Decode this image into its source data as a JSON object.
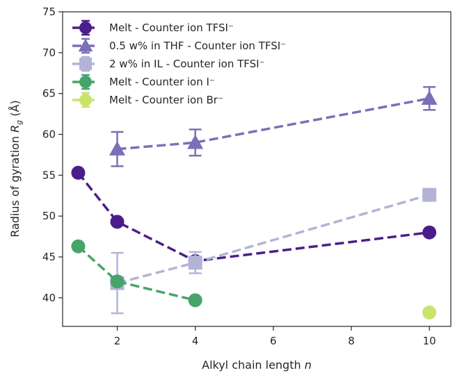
{
  "chart_data": {
    "type": "line",
    "xlabel": "Alkyl chain length n",
    "ylabel": "Radius of gyration Rg (Å)",
    "xlim": [
      0.6,
      10.55
    ],
    "ylim": [
      36.5,
      75
    ],
    "xticks": [
      2,
      4,
      6,
      8,
      10
    ],
    "yticks": [
      40,
      45,
      50,
      55,
      60,
      65,
      70,
      75
    ],
    "grid": false,
    "legend_position": "top-left",
    "series": [
      {
        "name": "Melt - Counter ion TFSI⁻",
        "color": "#4a1e8a",
        "marker": "circle",
        "x": [
          1,
          2,
          4,
          10
        ],
        "y": [
          55.3,
          49.3,
          44.5,
          48.0
        ],
        "yerr": [
          0.4,
          0.4,
          0.6,
          0.4
        ]
      },
      {
        "name": "0.5 w% in THF - Counter ion TFSI⁻",
        "color": "#7b6fb8",
        "marker": "triangle",
        "x": [
          2,
          4,
          10
        ],
        "y": [
          58.2,
          59.0,
          64.4
        ],
        "yerr": [
          2.1,
          1.6,
          1.4
        ]
      },
      {
        "name": "2 w% in IL - Counter ion TFSI⁻",
        "color": "#b3b3d8",
        "marker": "square",
        "x": [
          2,
          4,
          10
        ],
        "y": [
          41.8,
          44.3,
          52.6
        ],
        "yerr": [
          3.7,
          1.3,
          0.3
        ]
      },
      {
        "name": "Melt - Counter ion I⁻",
        "color": "#46a46a",
        "marker": "circle",
        "x": [
          1,
          2,
          4
        ],
        "y": [
          46.3,
          42.0,
          39.7
        ],
        "yerr": [
          0.6,
          0.5,
          0.4
        ]
      },
      {
        "name": "Melt - Counter ion Br⁻",
        "color": "#c9e36b",
        "marker": "circle",
        "x": [
          10
        ],
        "y": [
          38.2
        ],
        "yerr": [
          0.3
        ]
      }
    ]
  }
}
